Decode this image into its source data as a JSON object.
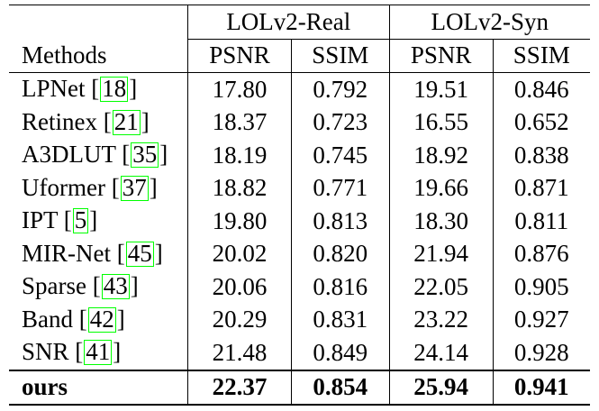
{
  "table": {
    "groups": [
      "LOLv2-Real",
      "LOLv2-Syn"
    ],
    "header": {
      "methods": "Methods",
      "metrics": [
        "PSNR",
        "SSIM",
        "PSNR",
        "SSIM"
      ]
    },
    "rows": [
      {
        "name": "LPNet",
        "cite": "18",
        "values": [
          "17.80",
          "0.792",
          "19.51",
          "0.846"
        ]
      },
      {
        "name": "Retinex",
        "cite": "21",
        "values": [
          "18.37",
          "0.723",
          "16.55",
          "0.652"
        ]
      },
      {
        "name": "A3DLUT",
        "cite": "35",
        "values": [
          "18.19",
          "0.745",
          "18.92",
          "0.838"
        ]
      },
      {
        "name": "Uformer",
        "cite": "37",
        "values": [
          "18.82",
          "0.771",
          "19.66",
          "0.871"
        ]
      },
      {
        "name": "IPT",
        "cite": "5",
        "values": [
          "19.80",
          "0.813",
          "18.30",
          "0.811"
        ]
      },
      {
        "name": "MIR-Net",
        "cite": "45",
        "values": [
          "20.02",
          "0.820",
          "21.94",
          "0.876"
        ]
      },
      {
        "name": "Sparse",
        "cite": "43",
        "values": [
          "20.06",
          "0.816",
          "22.05",
          "0.905"
        ]
      },
      {
        "name": "Band",
        "cite": "42",
        "values": [
          "20.29",
          "0.831",
          "23.22",
          "0.927"
        ]
      },
      {
        "name": "SNR",
        "cite": "41",
        "values": [
          "21.48",
          "0.849",
          "24.14",
          "0.928"
        ]
      }
    ],
    "best": {
      "name": "ours",
      "values": [
        "22.37",
        "0.854",
        "25.94",
        "0.941"
      ]
    }
  }
}
